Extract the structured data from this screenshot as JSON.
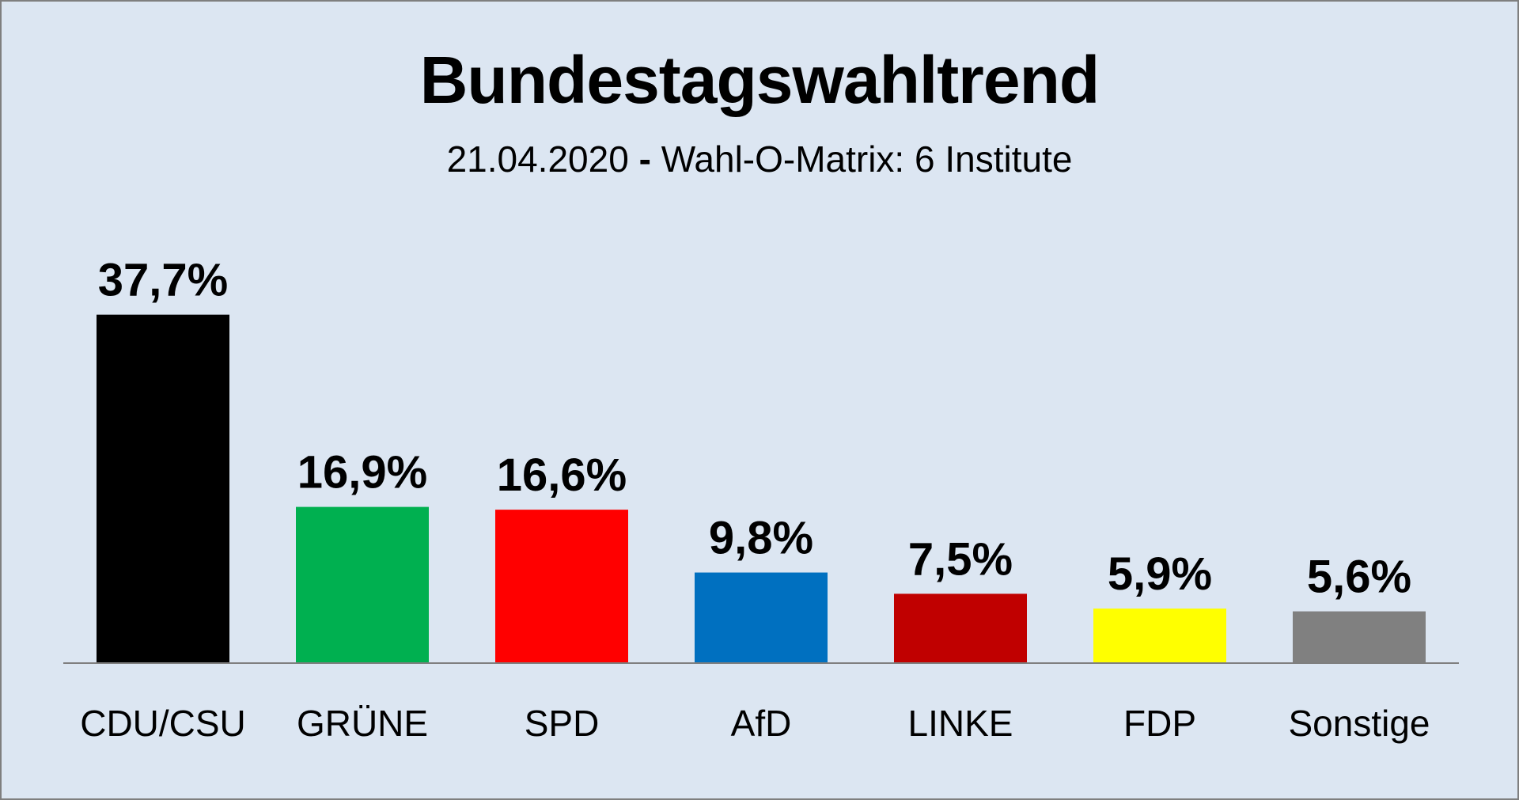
{
  "header": {
    "title": "Bundestagswahltrend",
    "subtitle_date": "21.04.2020",
    "subtitle_sep": "-",
    "subtitle_source": "Wahl-O-Matrix: 6 Institute"
  },
  "chart_data": {
    "type": "bar",
    "title": "Bundestagswahltrend",
    "subtitle": "21.04.2020 - Wahl-O-Matrix: 6 Institute",
    "categories": [
      "CDU/CSU",
      "GRÜNE",
      "SPD",
      "AfD",
      "LINKE",
      "FDP",
      "Sonstige"
    ],
    "values": [
      37.7,
      16.9,
      16.6,
      9.8,
      7.5,
      5.9,
      5.6
    ],
    "value_labels": [
      "37,7%",
      "16,9%",
      "16,6%",
      "9,8%",
      "7,5%",
      "5,9%",
      "5,6%"
    ],
    "colors": [
      "#000000",
      "#00b050",
      "#ff0000",
      "#0070c0",
      "#c00000",
      "#ffff00",
      "#808080"
    ],
    "grid": false,
    "legend": "none",
    "xlabel": "",
    "ylabel": ""
  }
}
